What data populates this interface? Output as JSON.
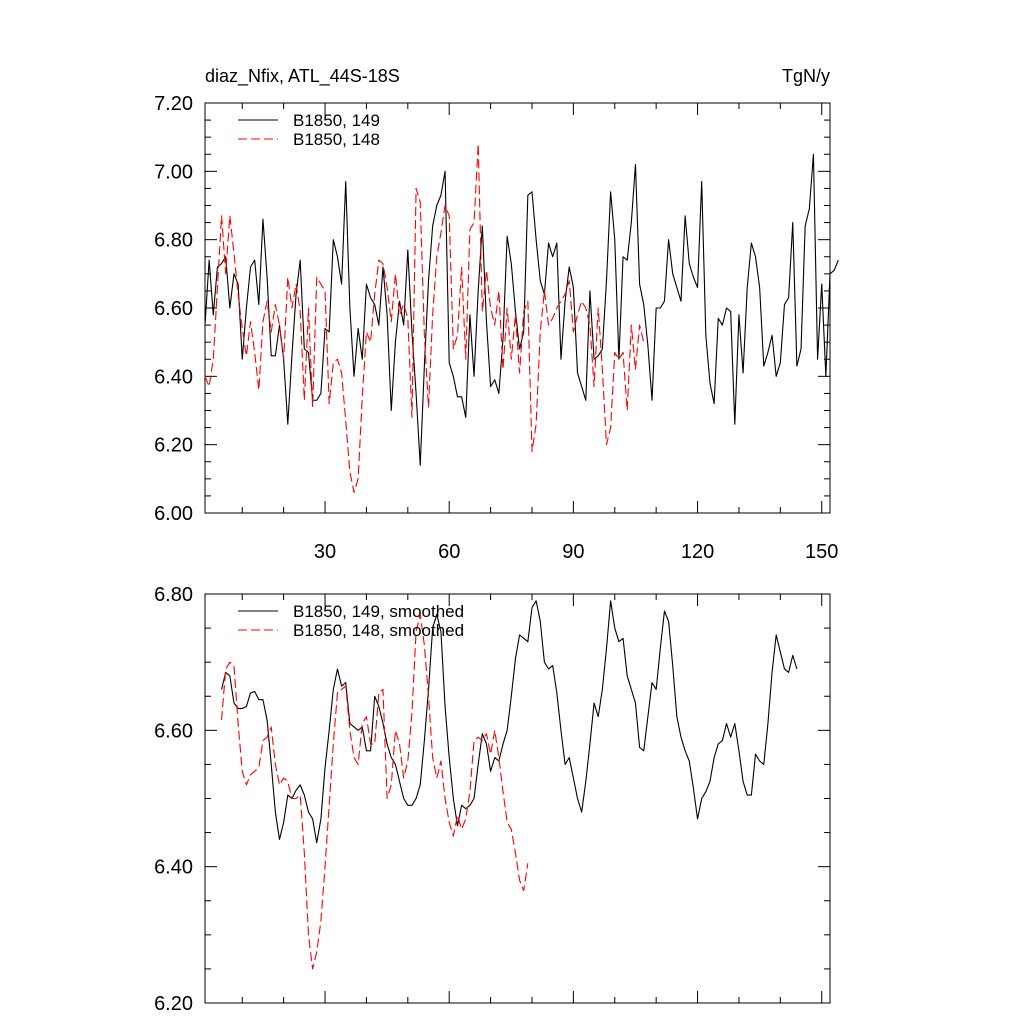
{
  "chart_data": [
    {
      "type": "line",
      "title": "diaz_Nfix, ATL_44S-18S",
      "units": "TgN/y",
      "xlim": [
        1,
        152
      ],
      "ylim": [
        6.0,
        7.2
      ],
      "xticks": [
        30,
        60,
        90,
        120,
        150
      ],
      "yticks": [
        "6.00",
        "6.20",
        "6.40",
        "6.60",
        "6.80",
        "7.00",
        "7.20"
      ],
      "legend": "top-left",
      "series": [
        {
          "name": "B1850, 149",
          "color": "#000000",
          "dash": "solid",
          "x_start": 1,
          "values": [
            6.55,
            6.74,
            6.58,
            6.72,
            6.73,
            6.75,
            6.6,
            6.7,
            6.67,
            6.45,
            6.6,
            6.72,
            6.74,
            6.61,
            6.86,
            6.69,
            6.46,
            6.46,
            6.55,
            6.45,
            6.26,
            6.46,
            6.64,
            6.74,
            6.48,
            6.47,
            6.33,
            6.33,
            6.35,
            6.54,
            6.53,
            6.8,
            6.75,
            6.67,
            6.97,
            6.6,
            6.4,
            6.54,
            6.45,
            6.67,
            6.63,
            6.61,
            6.55,
            6.72,
            6.58,
            6.3,
            6.5,
            6.62,
            6.55,
            6.77,
            6.53,
            6.35,
            6.14,
            6.43,
            6.68,
            6.84,
            6.9,
            6.93,
            7.0,
            6.44,
            6.4,
            6.34,
            6.34,
            6.28,
            6.58,
            6.4,
            6.65,
            6.84,
            6.56,
            6.37,
            6.39,
            6.35,
            6.51,
            6.81,
            6.73,
            6.59,
            6.48,
            6.53,
            6.93,
            6.94,
            6.8,
            6.68,
            6.64,
            6.79,
            6.75,
            6.79,
            6.45,
            6.62,
            6.72,
            6.66,
            6.41,
            6.37,
            6.33,
            6.65,
            6.45,
            6.46,
            6.48,
            6.68,
            6.94,
            6.8,
            6.45,
            6.75,
            6.74,
            6.85,
            7.02,
            6.67,
            6.61,
            6.49,
            6.33,
            6.6,
            6.6,
            6.62,
            6.8,
            6.7,
            6.66,
            6.62,
            6.87,
            6.73,
            6.69,
            6.66,
            6.97,
            6.52,
            6.38,
            6.32,
            6.57,
            6.55,
            6.6,
            6.59,
            6.26,
            6.58,
            6.41,
            6.66,
            6.79,
            6.75,
            6.66,
            6.43,
            6.47,
            6.52,
            6.4,
            6.44,
            6.61,
            6.63,
            6.85,
            6.43,
            6.48,
            6.84,
            6.89,
            7.05,
            6.45,
            6.67,
            6.4,
            6.7,
            6.71,
            6.74
          ]
        },
        {
          "name": "B1850, 148",
          "color": "#ff0000",
          "dash": "dashed",
          "x_start": 1,
          "values": [
            6.4,
            6.37,
            6.45,
            6.66,
            6.87,
            6.7,
            6.87,
            6.76,
            6.64,
            6.54,
            6.46,
            6.56,
            6.47,
            6.36,
            6.56,
            6.62,
            6.53,
            6.61,
            6.55,
            6.45,
            6.69,
            6.6,
            6.67,
            6.59,
            6.33,
            6.6,
            6.31,
            6.69,
            6.67,
            6.65,
            6.32,
            6.44,
            6.45,
            6.41,
            6.27,
            6.12,
            6.06,
            6.1,
            6.34,
            6.53,
            6.5,
            6.64,
            6.74,
            6.73,
            6.66,
            6.56,
            6.7,
            6.58,
            6.61,
            6.57,
            6.28,
            6.95,
            6.91,
            6.52,
            6.31,
            6.58,
            6.75,
            6.82,
            6.9,
            6.87,
            6.48,
            6.52,
            6.72,
            6.45,
            6.83,
            6.85,
            7.08,
            6.59,
            6.71,
            6.6,
            6.55,
            6.65,
            6.42,
            6.6,
            6.45,
            6.58,
            6.41,
            6.59,
            6.62,
            6.18,
            6.26,
            6.53,
            6.65,
            6.55,
            6.57,
            6.6,
            6.62,
            6.64,
            6.68,
            6.53,
            6.58,
            6.62,
            6.6,
            6.55,
            6.37,
            6.6,
            6.42,
            6.2,
            6.25,
            6.47,
            6.45,
            6.47,
            6.3,
            6.55,
            6.42,
            6.55,
            6.5
          ]
        }
      ]
    },
    {
      "type": "line",
      "xlim": [
        1,
        152
      ],
      "ylim": [
        6.2,
        6.8
      ],
      "xticks": [
        30,
        60,
        90,
        120,
        150
      ],
      "yticks": [
        "6.20",
        "6.40",
        "6.60",
        "6.80"
      ],
      "legend": "top-left",
      "series": [
        {
          "name": "B1850, 149, smoothed",
          "color": "#000000",
          "dash": "solid",
          "x_start": 5,
          "values": [
            6.66,
            6.685,
            6.68,
            6.64,
            6.632,
            6.632,
            6.635,
            6.655,
            6.657,
            6.645,
            6.645,
            6.615,
            6.55,
            6.48,
            6.44,
            6.465,
            6.505,
            6.5,
            6.512,
            6.52,
            6.505,
            6.48,
            6.47,
            6.435,
            6.47,
            6.545,
            6.6,
            6.66,
            6.69,
            6.665,
            6.67,
            6.61,
            6.605,
            6.6,
            6.605,
            6.57,
            6.57,
            6.65,
            6.635,
            6.61,
            6.58,
            6.56,
            6.55,
            6.525,
            6.5,
            6.49,
            6.49,
            6.5,
            6.52,
            6.585,
            6.66,
            6.75,
            6.77,
            6.745,
            6.635,
            6.56,
            6.5,
            6.46,
            6.49,
            6.485,
            6.49,
            6.5,
            6.55,
            6.595,
            6.58,
            6.54,
            6.56,
            6.555,
            6.58,
            6.6,
            6.65,
            6.705,
            6.74,
            6.735,
            6.73,
            6.78,
            6.79,
            6.76,
            6.7,
            6.69,
            6.695,
            6.655,
            6.6,
            6.55,
            6.56,
            6.53,
            6.5,
            6.48,
            6.525,
            6.58,
            6.64,
            6.62,
            6.66,
            6.72,
            6.79,
            6.75,
            6.73,
            6.735,
            6.68,
            6.66,
            6.64,
            6.575,
            6.57,
            6.62,
            6.67,
            6.66,
            6.72,
            6.775,
            6.76,
            6.695,
            6.62,
            6.59,
            6.57,
            6.555,
            6.515,
            6.47,
            6.5,
            6.51,
            6.525,
            6.56,
            6.58,
            6.585,
            6.61,
            6.59,
            6.61,
            6.57,
            6.525,
            6.505,
            6.505,
            6.565,
            6.555,
            6.55,
            6.61,
            6.685,
            6.74,
            6.715,
            6.69,
            6.685,
            6.71,
            6.69
          ]
        },
        {
          "name": "B1850, 148, smoothed",
          "color": "#ff0000",
          "dash": "dashed",
          "x_start": 5,
          "values": [
            6.615,
            6.69,
            6.7,
            6.695,
            6.61,
            6.54,
            6.52,
            6.535,
            6.54,
            6.545,
            6.585,
            6.59,
            6.605,
            6.55,
            6.52,
            6.53,
            6.525,
            6.5,
            6.5,
            6.505,
            6.42,
            6.3,
            6.25,
            6.275,
            6.32,
            6.4,
            6.49,
            6.58,
            6.655,
            6.66,
            6.665,
            6.6,
            6.56,
            6.55,
            6.61,
            6.62,
            6.58,
            6.58,
            6.655,
            6.66,
            6.5,
            6.52,
            6.6,
            6.58,
            6.53,
            6.555,
            6.625,
            6.745,
            6.77,
            6.725,
            6.65,
            6.56,
            6.53,
            6.555,
            6.5,
            6.465,
            6.445,
            6.475,
            6.455,
            6.47,
            6.51,
            6.585,
            6.59,
            6.585,
            6.595,
            6.565,
            6.6,
            6.56,
            6.51,
            6.465,
            6.455,
            6.42,
            6.38,
            6.365,
            6.405
          ]
        }
      ]
    }
  ]
}
